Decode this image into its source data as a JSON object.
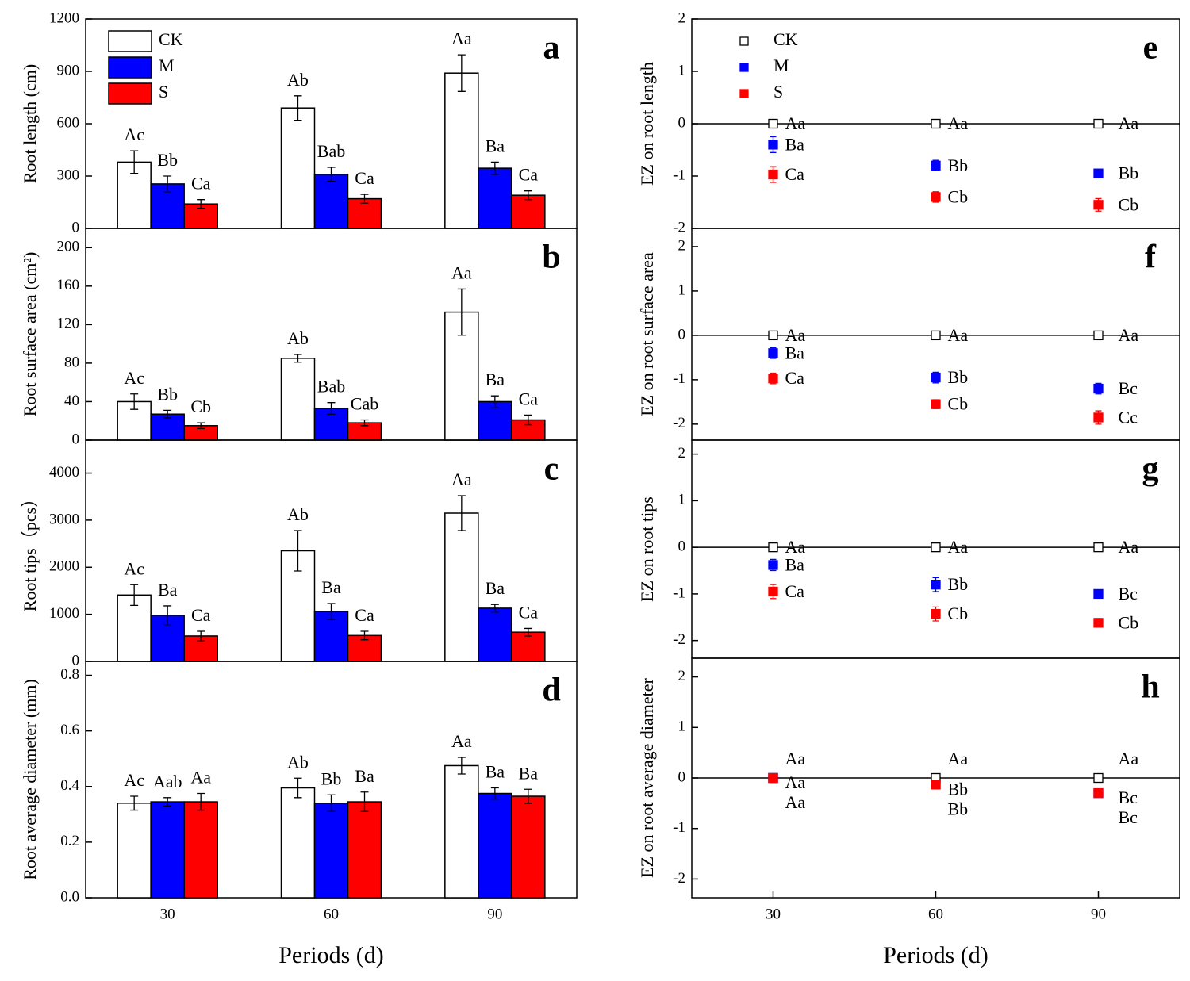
{
  "chart_data": [
    {
      "type": "bar",
      "panel_label": "a",
      "y_label": "Root length (cm)",
      "legend": true,
      "ylim": [
        0,
        1200
      ],
      "yticks": [
        0,
        300,
        600,
        900,
        1200
      ],
      "series": [
        {
          "name": "CK",
          "color": "#ffffff",
          "values": [
            380,
            690,
            890
          ],
          "errors": [
            65,
            70,
            105
          ],
          "labels": [
            "Ac",
            "Ab",
            "Aa"
          ]
        },
        {
          "name": "M",
          "color": "#0000ff",
          "values": [
            255,
            310,
            345
          ],
          "errors": [
            45,
            40,
            35
          ],
          "labels": [
            "Bb",
            "Bab",
            "Ba"
          ]
        },
        {
          "name": "S",
          "color": "#ff0000",
          "values": [
            140,
            170,
            190
          ],
          "errors": [
            25,
            25,
            25
          ],
          "labels": [
            "Ca",
            "Ca",
            "Ca"
          ]
        }
      ]
    },
    {
      "type": "bar",
      "panel_label": "b",
      "y_label": "Root surface area (cm²)",
      "ylim": [
        0,
        220
      ],
      "yticks": [
        0,
        40,
        80,
        120,
        160,
        200
      ],
      "series": [
        {
          "name": "CK",
          "color": "#ffffff",
          "values": [
            40,
            85,
            133
          ],
          "errors": [
            8,
            4,
            24
          ],
          "labels": [
            "Ac",
            "Ab",
            "Aa"
          ]
        },
        {
          "name": "M",
          "color": "#0000ff",
          "values": [
            27,
            33,
            40
          ],
          "errors": [
            4,
            6,
            6
          ],
          "labels": [
            "Bb",
            "Bab",
            "Ba"
          ]
        },
        {
          "name": "S",
          "color": "#ff0000",
          "values": [
            15,
            18,
            21
          ],
          "errors": [
            3,
            3,
            5
          ],
          "labels": [
            "Cb",
            "Cab",
            "Ca"
          ]
        }
      ]
    },
    {
      "type": "bar",
      "panel_label": "c",
      "y_label": "Root tips（pcs）",
      "ylim": [
        0,
        4700
      ],
      "yticks": [
        0,
        1000,
        2000,
        3000,
        4000
      ],
      "series": [
        {
          "name": "CK",
          "color": "#ffffff",
          "values": [
            1410,
            2350,
            3150
          ],
          "errors": [
            220,
            430,
            370
          ],
          "labels": [
            "Ac",
            "Ab",
            "Aa"
          ]
        },
        {
          "name": "M",
          "color": "#0000ff",
          "values": [
            980,
            1060,
            1130
          ],
          "errors": [
            200,
            170,
            80
          ],
          "labels": [
            "Ba",
            "Ba",
            "Ba"
          ]
        },
        {
          "name": "S",
          "color": "#ff0000",
          "values": [
            540,
            550,
            620
          ],
          "errors": [
            100,
            90,
            80
          ],
          "labels": [
            "Ca",
            "Ca",
            "Ca"
          ]
        }
      ]
    },
    {
      "type": "bar",
      "panel_label": "d",
      "y_label": "Root average diameter (mm)",
      "x_label": "Periods (d)",
      "categories": [
        30,
        60,
        90
      ],
      "ylim": [
        0,
        0.85
      ],
      "yticks": [
        {
          "value": 0,
          "label": "0.0"
        },
        0.2,
        0.4,
        0.6,
        0.8
      ],
      "series": [
        {
          "name": "CK",
          "color": "#ffffff",
          "values": [
            0.34,
            0.395,
            0.475
          ],
          "errors": [
            0.025,
            0.035,
            0.03
          ],
          "labels": [
            "Ac",
            "Ab",
            "Aa"
          ]
        },
        {
          "name": "M",
          "color": "#0000ff",
          "values": [
            0.345,
            0.34,
            0.375
          ],
          "errors": [
            0.015,
            0.03,
            0.02
          ],
          "labels": [
            "Aab",
            "Bb",
            "Ba"
          ]
        },
        {
          "name": "S",
          "color": "#ff0000",
          "values": [
            0.345,
            0.345,
            0.365
          ],
          "errors": [
            0.03,
            0.035,
            0.025
          ],
          "labels": [
            "Aa",
            "Ba",
            "Ba"
          ]
        }
      ]
    },
    {
      "type": "scatter",
      "panel_label": "e",
      "y_label": "EZ on root length",
      "legend": true,
      "ylim": [
        -2,
        2
      ],
      "yticks": [
        -2,
        -1,
        0,
        1,
        2
      ],
      "series": [
        {
          "name": "CK",
          "color": "#ffffff",
          "values": [
            0,
            0,
            0
          ],
          "errors": [
            0,
            0,
            0
          ],
          "labels": [
            "Aa",
            "Aa",
            "Aa"
          ]
        },
        {
          "name": "M",
          "color": "#0000ff",
          "values": [
            -0.4,
            -0.8,
            -0.95
          ],
          "errors": [
            0.15,
            0.1,
            0.08
          ],
          "labels": [
            "Ba",
            "Bb",
            "Bb"
          ]
        },
        {
          "name": "S",
          "color": "#ff0000",
          "values": [
            -0.97,
            -1.4,
            -1.55
          ],
          "errors": [
            0.15,
            0.1,
            0.12
          ],
          "labels": [
            "Ca",
            "Cb",
            "Cb"
          ]
        }
      ]
    },
    {
      "type": "scatter",
      "panel_label": "f",
      "y_label": "EZ on root surface area",
      "ylim": [
        -2.36,
        2.41
      ],
      "yticks": [
        -2,
        -1,
        0,
        1,
        2
      ],
      "series": [
        {
          "name": "CK",
          "color": "#ffffff",
          "values": [
            0,
            0,
            0
          ],
          "errors": [
            0,
            0,
            0
          ],
          "labels": [
            "Aa",
            "Aa",
            "Aa"
          ]
        },
        {
          "name": "M",
          "color": "#0000ff",
          "values": [
            -0.4,
            -0.95,
            -1.2
          ],
          "errors": [
            0.12,
            0.12,
            0.12
          ],
          "labels": [
            "Ba",
            "Bb",
            "Bc"
          ]
        },
        {
          "name": "S",
          "color": "#ff0000",
          "values": [
            -0.97,
            -1.55,
            -1.85
          ],
          "errors": [
            0.12,
            0.1,
            0.15
          ],
          "labels": [
            "Ca",
            "Cb",
            "Cc"
          ]
        }
      ]
    },
    {
      "type": "scatter",
      "panel_label": "g",
      "y_label": "EZ on root tips",
      "ylim": [
        -2.38,
        2.3
      ],
      "yticks": [
        -2,
        -1,
        0,
        1,
        2
      ],
      "series": [
        {
          "name": "CK",
          "color": "#ffffff",
          "values": [
            0,
            0,
            0
          ],
          "errors": [
            0,
            0,
            0
          ],
          "labels": [
            "Aa",
            "Aa",
            "Aa"
          ]
        },
        {
          "name": "M",
          "color": "#0000ff",
          "values": [
            -0.38,
            -0.8,
            -1.0
          ],
          "errors": [
            0.12,
            0.15,
            0.05
          ],
          "labels": [
            "Ba",
            "Bb",
            "Bc"
          ]
        },
        {
          "name": "S",
          "color": "#ff0000",
          "values": [
            -0.95,
            -1.43,
            -1.62
          ],
          "errors": [
            0.15,
            0.15,
            0.08
          ],
          "labels": [
            "Ca",
            "Cb",
            "Cb"
          ]
        }
      ]
    },
    {
      "type": "scatter",
      "panel_label": "h",
      "y_label": "EZ on root average diameter",
      "x_label": "Periods (d)",
      "categories": [
        30,
        60,
        90
      ],
      "ylim": [
        -2.37,
        2.37
      ],
      "yticks": [
        -2,
        -1,
        0,
        1,
        2
      ],
      "series": [
        {
          "name": "CK",
          "color": "#ffffff",
          "values": [
            0,
            0,
            0
          ],
          "errors": [
            0,
            0,
            0
          ],
          "labels": [
            "Aa",
            "Aa",
            "Aa"
          ]
        },
        {
          "name": "M",
          "color": "#0000ff",
          "values": [
            0,
            -0.13,
            -0.3
          ],
          "errors": [
            0.05,
            0.05,
            0.06
          ],
          "labels": [
            "Aa",
            "Bb",
            "Bc"
          ]
        },
        {
          "name": "S",
          "color": "#ff0000",
          "values": [
            0,
            -0.13,
            -0.3
          ],
          "errors": [
            0.05,
            0.05,
            0.06
          ],
          "labels": [
            "Aa",
            "Bb",
            "Bc"
          ]
        }
      ]
    }
  ]
}
